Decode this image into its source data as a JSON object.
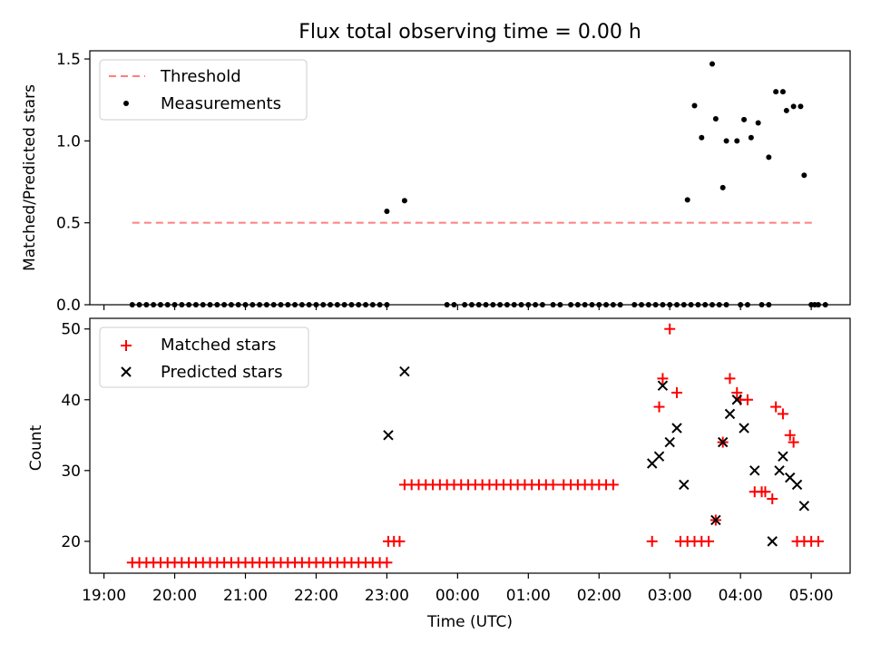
{
  "figure": {
    "title": "Flux total observing time = 0.00 h"
  },
  "chart_data": [
    {
      "type": "scatter",
      "panel": "top",
      "xlabel": "",
      "ylabel": "Matched/Predicted stars",
      "x_axis": "time (UTC), hours relative to 00:00",
      "xlim": [
        -5.2,
        5.55
      ],
      "ylim": [
        0,
        1.55
      ],
      "yticks": [
        0.0,
        0.5,
        1.0,
        1.5
      ],
      "ytick_labels": [
        "0.0",
        "0.5",
        "1.0",
        "1.5"
      ],
      "legend": {
        "placement": "upper left",
        "entries": [
          {
            "label": "Threshold",
            "style": "dashed-line",
            "color": "#ff7f7f"
          },
          {
            "label": "Measurements",
            "style": "dot",
            "color": "#000000"
          }
        ]
      },
      "series": [
        {
          "name": "Threshold",
          "kind": "line",
          "color": "#ff7f7f",
          "x": [
            -4.6,
            5.05
          ],
          "y": [
            0.5,
            0.5
          ]
        },
        {
          "name": "Measurements",
          "kind": "scatter",
          "color": "#000000",
          "x": [
            -4.6,
            -4.5,
            -4.4,
            -4.3,
            -4.2,
            -4.1,
            -4.0,
            -3.9,
            -3.8,
            -3.7,
            -3.6,
            -3.5,
            -3.4,
            -3.3,
            -3.2,
            -3.1,
            -3.0,
            -2.9,
            -2.8,
            -2.7,
            -2.6,
            -2.5,
            -2.4,
            -2.3,
            -2.2,
            -2.1,
            -2.0,
            -1.9,
            -1.8,
            -1.7,
            -1.6,
            -1.5,
            -1.4,
            -1.3,
            -1.2,
            -1.1,
            -1.0,
            -0.15,
            -0.05,
            0.1,
            0.2,
            0.3,
            0.4,
            0.5,
            0.6,
            0.7,
            0.8,
            0.9,
            1.0,
            1.1,
            1.2,
            1.35,
            1.45,
            1.6,
            1.7,
            1.8,
            1.9,
            2.0,
            2.1,
            2.2,
            2.3,
            2.5,
            2.6,
            2.7,
            2.8,
            2.9,
            3.0,
            3.1,
            3.2,
            3.3,
            3.4,
            3.5,
            3.6,
            3.7,
            3.8,
            4.0,
            4.1,
            4.3,
            4.4,
            5.0,
            5.1,
            5.2,
            -1.0,
            -0.75,
            3.25,
            3.35,
            3.45,
            3.6,
            3.65,
            3.75,
            3.8,
            3.95,
            4.05,
            4.15,
            4.25,
            4.4,
            4.5,
            4.6,
            4.65,
            4.75,
            4.85,
            4.9,
            5.05
          ],
          "y": [
            0,
            0,
            0,
            0,
            0,
            0,
            0,
            0,
            0,
            0,
            0,
            0,
            0,
            0,
            0,
            0,
            0,
            0,
            0,
            0,
            0,
            0,
            0,
            0,
            0,
            0,
            0,
            0,
            0,
            0,
            0,
            0,
            0,
            0,
            0,
            0,
            0,
            0,
            0,
            0,
            0,
            0,
            0,
            0,
            0,
            0,
            0,
            0,
            0,
            0,
            0,
            0,
            0,
            0,
            0,
            0,
            0,
            0,
            0,
            0,
            0,
            0,
            0,
            0,
            0,
            0,
            0,
            0,
            0,
            0,
            0,
            0,
            0,
            0,
            0,
            0,
            0,
            0,
            0,
            0,
            0,
            0,
            0.57,
            0.635,
            0.64,
            1.215,
            1.02,
            1.47,
            1.135,
            0.715,
            1.0,
            1.0,
            1.13,
            1.02,
            1.11,
            0.9,
            1.3,
            1.3,
            1.185,
            1.21,
            1.21,
            0.79,
            0
          ]
        }
      ]
    },
    {
      "type": "scatter",
      "panel": "bottom",
      "xlabel": "Time (UTC)",
      "ylabel": "Count",
      "x_axis": "time (UTC), hours relative to 00:00",
      "xlim": [
        -5.2,
        5.55
      ],
      "ylim": [
        15.5,
        51.5
      ],
      "yticks": [
        20,
        30,
        40,
        50
      ],
      "ytick_labels": [
        "20",
        "30",
        "40",
        "50"
      ],
      "xticks": [
        -5,
        -4,
        -3,
        -2,
        -1,
        0,
        1,
        2,
        3,
        4,
        5
      ],
      "xtick_labels": [
        "19:00",
        "20:00",
        "21:00",
        "22:00",
        "23:00",
        "00:00",
        "01:00",
        "02:00",
        "03:00",
        "04:00",
        "05:00"
      ],
      "legend": {
        "placement": "upper left",
        "entries": [
          {
            "label": "Matched stars",
            "style": "plus",
            "color": "#ff0000"
          },
          {
            "label": "Predicted stars",
            "style": "cross",
            "color": "#000000"
          }
        ]
      },
      "series": [
        {
          "name": "Matched stars",
          "kind": "plus",
          "color": "#ff0000",
          "x": [
            -4.6,
            -4.5,
            -4.4,
            -4.3,
            -4.2,
            -4.1,
            -4.0,
            -3.9,
            -3.8,
            -3.7,
            -3.6,
            -3.5,
            -3.4,
            -3.3,
            -3.2,
            -3.1,
            -3.0,
            -2.9,
            -2.8,
            -2.7,
            -2.6,
            -2.5,
            -2.4,
            -2.3,
            -2.2,
            -2.1,
            -2.0,
            -1.9,
            -1.8,
            -1.7,
            -1.6,
            -1.5,
            -1.4,
            -1.3,
            -1.2,
            -1.1,
            -1.0,
            -0.98,
            -0.9,
            -0.82,
            -0.75,
            -0.65,
            -0.55,
            -0.45,
            -0.35,
            -0.25,
            -0.15,
            -0.05,
            0.05,
            0.15,
            0.25,
            0.35,
            0.45,
            0.55,
            0.65,
            0.75,
            0.85,
            0.95,
            1.05,
            1.15,
            1.25,
            1.35,
            1.5,
            1.6,
            1.7,
            1.8,
            1.9,
            2.0,
            2.1,
            2.2,
            2.75,
            2.85,
            2.9,
            3.0,
            3.1,
            3.15,
            3.25,
            3.35,
            3.45,
            3.55,
            3.65,
            3.75,
            3.85,
            3.95,
            4.0,
            4.1,
            4.2,
            4.3,
            4.35,
            4.45,
            4.5,
            4.6,
            4.7,
            4.75,
            4.8,
            4.9,
            5.0,
            5.1
          ],
          "y": [
            17,
            17,
            17,
            17,
            17,
            17,
            17,
            17,
            17,
            17,
            17,
            17,
            17,
            17,
            17,
            17,
            17,
            17,
            17,
            17,
            17,
            17,
            17,
            17,
            17,
            17,
            17,
            17,
            17,
            17,
            17,
            17,
            17,
            17,
            17,
            17,
            17,
            20,
            20,
            20,
            28,
            28,
            28,
            28,
            28,
            28,
            28,
            28,
            28,
            28,
            28,
            28,
            28,
            28,
            28,
            28,
            28,
            28,
            28,
            28,
            28,
            28,
            28,
            28,
            28,
            28,
            28,
            28,
            28,
            28,
            20,
            39,
            43,
            50,
            41,
            20,
            20,
            20,
            20,
            20,
            23,
            34,
            43,
            41,
            40,
            40,
            27,
            27,
            27,
            26,
            39,
            38,
            35,
            34,
            20,
            20,
            20,
            20
          ]
        },
        {
          "name": "Predicted stars",
          "kind": "cross",
          "color": "#000000",
          "x": [
            -0.98,
            -0.75,
            2.75,
            2.85,
            2.9,
            3.0,
            3.1,
            3.2,
            3.65,
            3.75,
            3.85,
            3.95,
            4.05,
            4.2,
            4.45,
            4.55,
            4.6,
            4.7,
            4.8,
            4.9
          ],
          "y": [
            35,
            44,
            31,
            32,
            42,
            34,
            36,
            28,
            23,
            34,
            38,
            40,
            36,
            30,
            20,
            30,
            32,
            29,
            28,
            25
          ]
        }
      ]
    }
  ]
}
